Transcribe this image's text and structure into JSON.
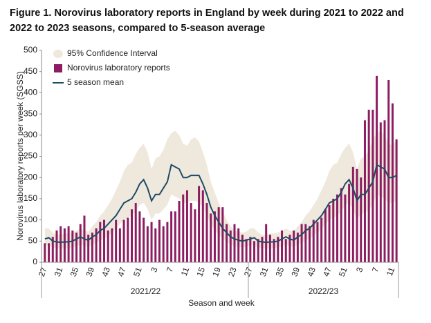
{
  "chart_data": {
    "type": "bar-line-band",
    "title": "Figure 1. Norovirus laboratory reports in England by week during 2021 to 2022 and 2022 to 2023 seasons, compared to 5-season average",
    "x_label": "Season and week",
    "y_label": "Norovirus laboratory reports per week (SGSS)",
    "seasons": [
      "2021/22",
      "2022/23"
    ],
    "categories": [
      "27",
      null,
      null,
      null,
      "31",
      null,
      null,
      null,
      "35",
      null,
      null,
      null,
      "39",
      null,
      null,
      null,
      "43",
      null,
      null,
      null,
      "47",
      null,
      null,
      null,
      "51",
      null,
      null,
      null,
      "3",
      null,
      null,
      null,
      "7",
      null,
      null,
      null,
      "11",
      null,
      null,
      null,
      "15",
      null,
      null,
      null,
      "19",
      null,
      null,
      null,
      "23",
      null,
      null,
      null,
      "27",
      null,
      null,
      null,
      "31",
      null,
      null,
      null,
      "35",
      null,
      null,
      null,
      "39",
      null,
      null,
      null,
      "43",
      null,
      null,
      null,
      "47",
      null,
      null,
      null,
      "51",
      null,
      null,
      null,
      "3",
      null,
      null,
      null,
      "7",
      null,
      null,
      null,
      "11",
      null
    ],
    "series": [
      {
        "name": "95% Confidence Interval",
        "color": "#efe9dd",
        "upper": [
          80,
          80,
          70,
          65,
          65,
          68,
          68,
          70,
          75,
          80,
          75,
          72,
          85,
          95,
          110,
          120,
          135,
          150,
          170,
          190,
          215,
          230,
          235,
          255,
          270,
          280,
          260,
          220,
          245,
          250,
          265,
          290,
          305,
          310,
          300,
          280,
          275,
          290,
          295,
          285,
          260,
          230,
          190,
          165,
          140,
          120,
          100,
          85,
          75,
          72,
          70,
          72,
          80,
          80,
          70,
          65,
          65,
          68,
          68,
          70,
          75,
          80,
          75,
          72,
          85,
          95,
          110,
          120,
          135,
          150,
          170,
          190,
          215,
          230,
          235,
          255,
          270,
          280,
          260,
          220,
          245,
          250,
          265,
          290,
          305,
          310,
          300,
          280,
          275,
          290
        ],
        "lower": [
          40,
          40,
          35,
          33,
          32,
          33,
          33,
          35,
          38,
          42,
          38,
          36,
          42,
          45,
          52,
          55,
          62,
          70,
          78,
          90,
          100,
          105,
          110,
          120,
          135,
          140,
          125,
          100,
          115,
          115,
          125,
          135,
          160,
          155,
          150,
          140,
          140,
          145,
          145,
          140,
          130,
          110,
          90,
          75,
          65,
          55,
          48,
          42,
          38,
          36,
          35,
          36,
          40,
          40,
          35,
          33,
          32,
          33,
          33,
          35,
          38,
          42,
          38,
          36,
          42,
          45,
          52,
          55,
          62,
          70,
          78,
          90,
          100,
          105,
          110,
          120,
          135,
          140,
          125,
          100,
          115,
          115,
          125,
          135,
          160,
          155,
          150,
          140,
          140,
          145
        ]
      },
      {
        "name": "Norovirus laboratory reports",
        "color": "#8c1d61",
        "values": [
          45,
          45,
          60,
          75,
          85,
          80,
          85,
          75,
          70,
          90,
          110,
          65,
          70,
          80,
          95,
          100,
          75,
          80,
          100,
          80,
          100,
          105,
          125,
          140,
          120,
          105,
          85,
          95,
          80,
          100,
          85,
          95,
          120,
          120,
          145,
          160,
          170,
          140,
          125,
          180,
          170,
          140,
          115,
          120,
          130,
          130,
          90,
          75,
          90,
          80,
          65,
          55,
          60,
          50,
          55,
          60,
          90,
          65,
          55,
          60,
          75,
          55,
          65,
          75,
          70,
          90,
          90,
          85,
          100,
          95,
          105,
          125,
          135,
          150,
          160,
          175,
          160,
          185,
          225,
          220,
          200,
          335,
          360,
          360,
          440,
          330,
          335,
          430,
          375,
          290
        ]
      },
      {
        "name": "5 season mean",
        "color": "#1e4a68",
        "values": [
          55,
          58,
          50,
          48,
          47,
          48,
          48,
          50,
          55,
          60,
          55,
          52,
          60,
          65,
          75,
          80,
          90,
          100,
          110,
          125,
          140,
          145,
          150,
          165,
          185,
          195,
          175,
          145,
          160,
          160,
          175,
          190,
          230,
          225,
          220,
          200,
          200,
          205,
          205,
          205,
          185,
          160,
          130,
          110,
          95,
          80,
          70,
          60,
          55,
          52,
          50,
          52,
          55,
          58,
          50,
          48,
          47,
          48,
          48,
          50,
          55,
          60,
          55,
          52,
          60,
          65,
          75,
          80,
          90,
          100,
          110,
          125,
          140,
          145,
          150,
          165,
          185,
          195,
          175,
          145,
          160,
          160,
          175,
          190,
          230,
          225,
          220,
          200,
          200,
          205
        ]
      }
    ],
    "ylim": [
      0,
      500
    ],
    "yticks": [
      0,
      50,
      100,
      150,
      200,
      250,
      300,
      350,
      400,
      450,
      500
    ],
    "grid": false,
    "legend": "top-left"
  }
}
